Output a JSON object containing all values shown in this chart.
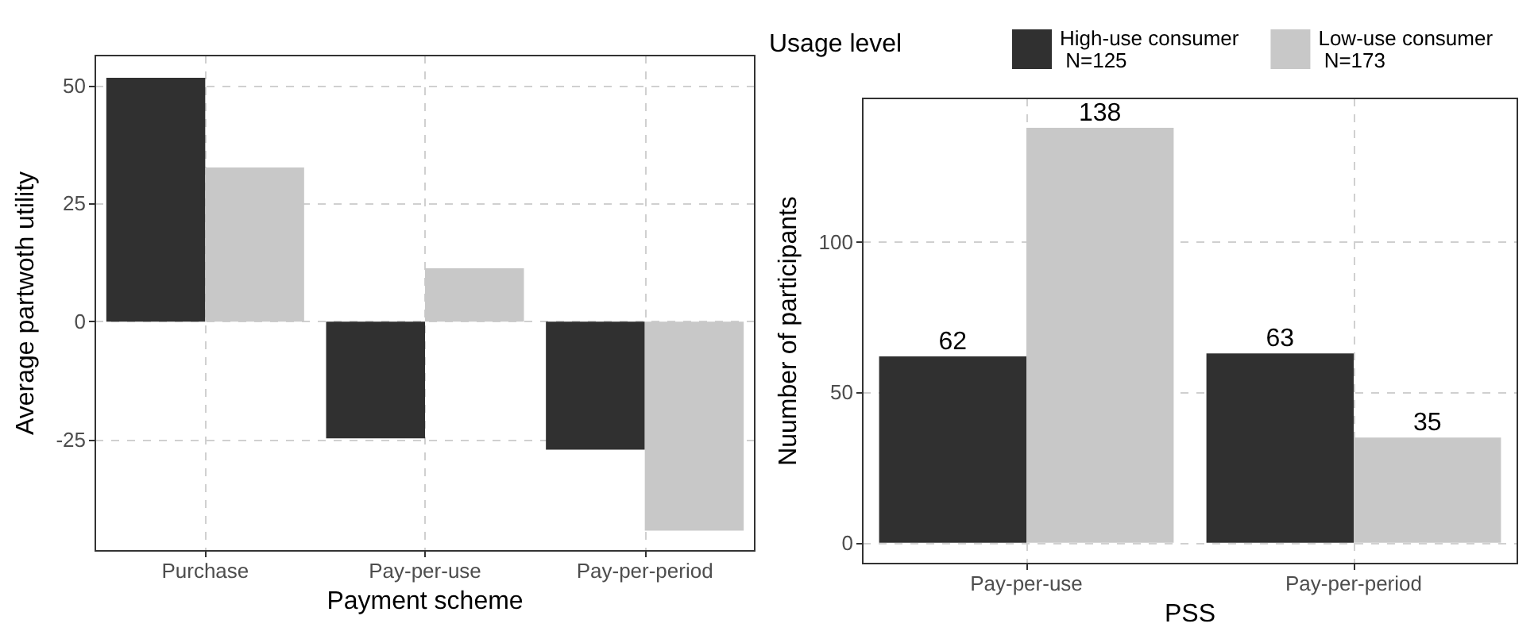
{
  "chart_data": [
    {
      "type": "bar",
      "xlabel": "Payment scheme",
      "ylabel": "Average partwoth utility",
      "categories": [
        "Purchase",
        "Pay-per-use",
        "Pay-per-period"
      ],
      "series": [
        {
          "color": "#303030",
          "values": [
            51.6,
            -24.7,
            -27.1
          ]
        },
        {
          "color": "#c8c8c8",
          "values": [
            32.6,
            11.3,
            -44.2
          ]
        }
      ],
      "ylim": [
        -48.5,
        56.3
      ],
      "yticks": [
        -25,
        0,
        25,
        50
      ],
      "grid": true,
      "legend": false
    },
    {
      "type": "bar",
      "xlabel": "PSS",
      "ylabel": "Nuumber of participants",
      "legend_title": "Usage level",
      "categories": [
        "Pay-per-use",
        "Pay-per-period"
      ],
      "series": [
        {
          "name": "High-use consumer\n N=125",
          "color": "#303030",
          "values": [
            62,
            63
          ]
        },
        {
          "name": "Low-use consumer\n N=173",
          "color": "#c8c8c8",
          "values": [
            138,
            35
          ]
        }
      ],
      "ylim": [
        -6.9,
        147.8
      ],
      "yticks": [
        0,
        50,
        100
      ],
      "grid": true,
      "legend": "top",
      "data_labels": true
    }
  ]
}
